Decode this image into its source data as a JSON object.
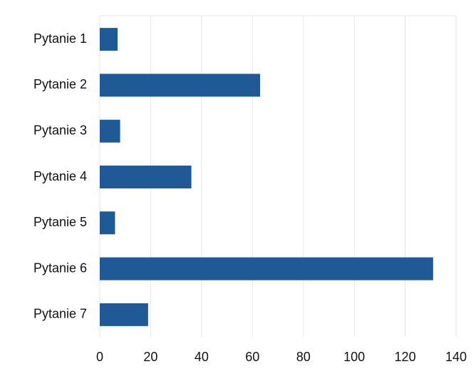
{
  "chart_data": {
    "type": "bar",
    "orientation": "horizontal",
    "categories": [
      "Pytanie 1",
      "Pytanie 2",
      "Pytanie 3",
      "Pytanie 4",
      "Pytanie 5",
      "Pytanie 6",
      "Pytanie 7"
    ],
    "values": [
      7,
      63,
      8,
      36,
      6,
      131,
      19
    ],
    "xlim": [
      0,
      140
    ],
    "x_ticks": [
      0,
      20,
      40,
      60,
      80,
      100,
      120,
      140
    ],
    "grid": true,
    "bar_color": "#1f5a96",
    "grid_color": "#e6e6e6"
  }
}
